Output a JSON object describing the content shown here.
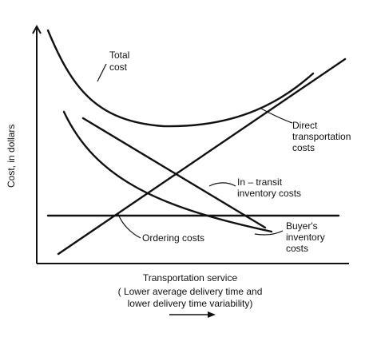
{
  "axes": {
    "y_label": "Cost, in dollars",
    "x_label": "Transportation service",
    "x_note_line1": "( Lower average delivery time and",
    "x_note_line2": "lower delivery time variability)"
  },
  "labels": {
    "total_line1": "Total",
    "total_line2": "cost",
    "direct_line1": "Direct",
    "direct_line2": "transportation",
    "direct_line3": "costs",
    "intransit_line1": "In – transit",
    "intransit_line2": "inventory costs",
    "buyer_line1": "Buyer's",
    "buyer_line2": "inventory",
    "buyer_line3": "costs",
    "ordering": "Ordering costs"
  }
}
